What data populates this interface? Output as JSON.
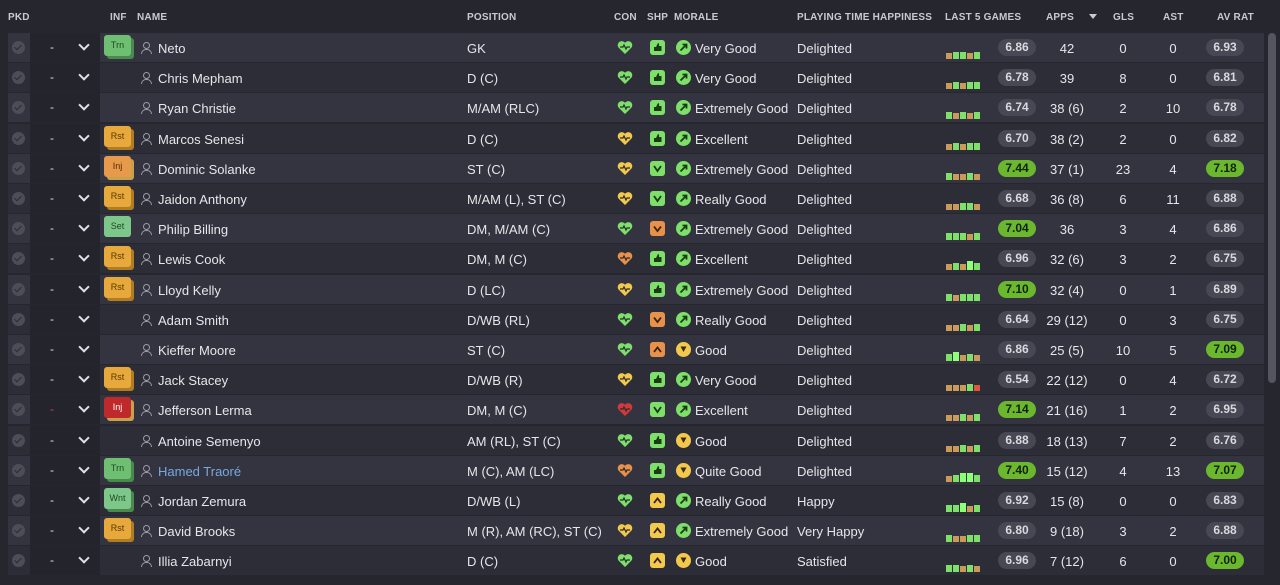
{
  "headers": {
    "pkd": "PKD",
    "inf": "INF",
    "name": "NAME",
    "position": "POSITION",
    "con": "CON",
    "shp": "SHP",
    "morale": "MORALE",
    "pth": "PLAYING TIME HAPPINESS",
    "last5": "LAST 5 GAMES",
    "apps": "APPS",
    "gls": "GLS",
    "ast": "AST",
    "avrat": "AV RAT"
  },
  "colors": {
    "green": "#7ee06a",
    "yellow": "#f2c94c",
    "orange": "#e8914a",
    "red": "#d23a3a",
    "tan": "#c99a5a",
    "highlight": "#6bb82e"
  },
  "players": [
    {
      "pk": "-",
      "inf": "Trn",
      "name": "Neto",
      "pos": "GK",
      "con": "green",
      "shp": "green-up",
      "morale": "Very Good",
      "mor": "green",
      "pth": "Delighted",
      "form": [
        "tan",
        "g",
        "g",
        "tan",
        "g"
      ],
      "l5": "6.86",
      "l5hi": false,
      "apps": "42",
      "gls": "0",
      "ast": "0",
      "av": "6.93",
      "avhi": false
    },
    {
      "pk": "-",
      "inf": "",
      "name": "Chris Mepham",
      "pos": "D (C)",
      "con": "green",
      "shp": "green-up",
      "morale": "Very Good",
      "mor": "green",
      "pth": "Delighted",
      "form": [
        "tan",
        "g",
        "tan",
        "g",
        "g"
      ],
      "l5": "6.78",
      "l5hi": false,
      "apps": "39",
      "gls": "8",
      "ast": "0",
      "av": "6.81",
      "avhi": false
    },
    {
      "pk": "-",
      "inf": "",
      "name": "Ryan Christie",
      "pos": "M/AM (RLC)",
      "con": "green",
      "shp": "green-up",
      "morale": "Extremely Good",
      "mor": "green",
      "pth": "Delighted",
      "form": [
        "g",
        "tan",
        "g",
        "tan",
        "g"
      ],
      "l5": "6.74",
      "l5hi": false,
      "apps": "38 (6)",
      "gls": "2",
      "ast": "10",
      "av": "6.78",
      "avhi": false
    },
    {
      "pk": "-",
      "inf": "Rst",
      "name": "Marcos Senesi",
      "pos": "D (C)",
      "con": "yellow",
      "shp": "green-up",
      "morale": "Excellent",
      "mor": "green",
      "pth": "Delighted",
      "form": [
        "tan",
        "g",
        "tan",
        "g",
        "g"
      ],
      "l5": "6.70",
      "l5hi": false,
      "apps": "38 (2)",
      "gls": "2",
      "ast": "0",
      "av": "6.82",
      "avhi": false
    },
    {
      "pk": "-",
      "inf": "Inj",
      "name": "Dominic Solanke",
      "pos": "ST (C)",
      "con": "yellow",
      "shp": "green-down",
      "morale": "Extremely Good",
      "mor": "green",
      "pth": "Delighted",
      "form": [
        "g",
        "tan",
        "tan",
        "g",
        "tan"
      ],
      "l5": "7.44",
      "l5hi": true,
      "apps": "37 (1)",
      "gls": "23",
      "ast": "4",
      "av": "7.18",
      "avhi": true
    },
    {
      "pk": "-",
      "inf": "Rst",
      "name": "Jaidon Anthony",
      "pos": "M/AM (L), ST (C)",
      "con": "yellow",
      "shp": "green-down",
      "morale": "Really Good",
      "mor": "green",
      "pth": "Delighted",
      "form": [
        "tan",
        "tan",
        "g",
        "g",
        "tan"
      ],
      "l5": "6.68",
      "l5hi": false,
      "apps": "36 (8)",
      "gls": "6",
      "ast": "11",
      "av": "6.88",
      "avhi": false
    },
    {
      "pk": "-",
      "inf": "Set",
      "name": "Philip Billing",
      "pos": "DM, M/AM (C)",
      "con": "green",
      "shp": "orange-down",
      "morale": "Extremely Good",
      "mor": "green",
      "pth": "Delighted",
      "form": [
        "g",
        "g",
        "g",
        "tan",
        "g"
      ],
      "l5": "7.04",
      "l5hi": true,
      "apps": "36",
      "gls": "3",
      "ast": "4",
      "av": "6.86",
      "avhi": false
    },
    {
      "pk": "-",
      "inf": "Rst",
      "name": "Lewis Cook",
      "pos": "DM, M (C)",
      "con": "orange",
      "shp": "green-up",
      "morale": "Excellent",
      "mor": "green",
      "pth": "Delighted",
      "form": [
        "tan",
        "g",
        "tan",
        "G",
        "g"
      ],
      "l5": "6.96",
      "l5hi": false,
      "apps": "32 (6)",
      "gls": "3",
      "ast": "2",
      "av": "6.75",
      "avhi": false
    },
    {
      "pk": "-",
      "inf": "Rst",
      "name": "Lloyd Kelly",
      "pos": "D (LC)",
      "con": "yellow",
      "shp": "green-up",
      "morale": "Extremely Good",
      "mor": "green",
      "pth": "Delighted",
      "form": [
        "g",
        "tan",
        "g",
        "g",
        "g"
      ],
      "l5": "7.10",
      "l5hi": true,
      "apps": "32 (4)",
      "gls": "0",
      "ast": "1",
      "av": "6.89",
      "avhi": false
    },
    {
      "pk": "-",
      "inf": "",
      "name": "Adam Smith",
      "pos": "D/WB (RL)",
      "con": "green",
      "shp": "orange-down",
      "morale": "Really Good",
      "mor": "green",
      "pth": "Delighted",
      "form": [
        "tan",
        "tan",
        "g",
        "tan",
        "g"
      ],
      "l5": "6.64",
      "l5hi": false,
      "apps": "29 (12)",
      "gls": "0",
      "ast": "3",
      "av": "6.75",
      "avhi": false
    },
    {
      "pk": "-",
      "inf": "",
      "name": "Kieffer Moore",
      "pos": "ST (C)",
      "con": "green",
      "shp": "orange-up",
      "morale": "Good",
      "mor": "yellow",
      "pth": "Delighted",
      "form": [
        "g",
        "G",
        "tan",
        "g",
        "tan"
      ],
      "l5": "6.86",
      "l5hi": false,
      "apps": "25 (5)",
      "gls": "10",
      "ast": "5",
      "av": "7.09",
      "avhi": true
    },
    {
      "pk": "-",
      "inf": "Rst",
      "name": "Jack Stacey",
      "pos": "D/WB (R)",
      "con": "yellow",
      "shp": "green-up",
      "morale": "Very Good",
      "mor": "green",
      "pth": "Delighted",
      "form": [
        "tan",
        "tan",
        "tan",
        "g",
        "red"
      ],
      "l5": "6.54",
      "l5hi": false,
      "apps": "22 (12)",
      "gls": "0",
      "ast": "4",
      "av": "6.72",
      "avhi": false
    },
    {
      "pk": "-",
      "inf": "InjRed",
      "name": "Jefferson Lerma",
      "pos": "DM, M (C)",
      "con": "red",
      "shp": "green-down",
      "morale": "Excellent",
      "mor": "green",
      "pth": "Delighted",
      "form": [
        "tan",
        "tan",
        "g",
        "tan",
        "g"
      ],
      "l5": "7.14",
      "l5hi": true,
      "apps": "21 (16)",
      "gls": "1",
      "ast": "2",
      "av": "6.95",
      "avhi": false
    },
    {
      "pk": "-",
      "inf": "",
      "name": "Antoine Semenyo",
      "pos": "AM (RL), ST (C)",
      "con": "green",
      "shp": "green-up",
      "morale": "Good",
      "mor": "yellow",
      "pth": "Delighted",
      "form": [
        "tan",
        "tan",
        "g",
        "tan",
        "g"
      ],
      "l5": "6.88",
      "l5hi": false,
      "apps": "18 (13)",
      "gls": "7",
      "ast": "2",
      "av": "6.76",
      "avhi": false
    },
    {
      "pk": "-",
      "inf": "Trn",
      "name": "Hamed Traoré",
      "pos": "M (C), AM (LC)",
      "con": "orange",
      "shp": "green-up",
      "morale": "Quite Good",
      "mor": "yellow",
      "pth": "Delighted",
      "form": [
        "tan",
        "g",
        "G",
        "G",
        "g"
      ],
      "l5": "7.40",
      "l5hi": true,
      "apps": "15 (12)",
      "gls": "4",
      "ast": "13",
      "av": "7.07",
      "avhi": true,
      "link": true
    },
    {
      "pk": "-",
      "inf": "Wnt",
      "name": "Jordan Zemura",
      "pos": "D/WB (L)",
      "con": "green",
      "shp": "yellow-up",
      "morale": "Really Good",
      "mor": "green",
      "pth": "Happy",
      "form": [
        "g",
        "g",
        "G",
        "tan",
        "g"
      ],
      "l5": "6.92",
      "l5hi": false,
      "apps": "15 (8)",
      "gls": "0",
      "ast": "0",
      "av": "6.83",
      "avhi": false
    },
    {
      "pk": "-",
      "inf": "Rst",
      "name": "David Brooks",
      "pos": "M (R), AM (RC), ST (C)",
      "con": "yellow",
      "shp": "yellow-up",
      "morale": "Extremely Good",
      "mor": "green",
      "pth": "Very Happy",
      "form": [
        "g",
        "tan",
        "tan",
        "g",
        "g"
      ],
      "l5": "6.80",
      "l5hi": false,
      "apps": "9 (18)",
      "gls": "3",
      "ast": "2",
      "av": "6.88",
      "avhi": false
    },
    {
      "pk": "-",
      "inf": "",
      "name": "Illia Zabarnyi",
      "pos": "D (C)",
      "con": "green",
      "shp": "yellow-up",
      "morale": "Good",
      "mor": "yellow",
      "pth": "Satisfied",
      "form": [
        "g",
        "g",
        "tan",
        "g",
        "tan"
      ],
      "l5": "6.96",
      "l5hi": false,
      "apps": "7 (12)",
      "gls": "6",
      "ast": "0",
      "av": "7.00",
      "avhi": true
    }
  ]
}
